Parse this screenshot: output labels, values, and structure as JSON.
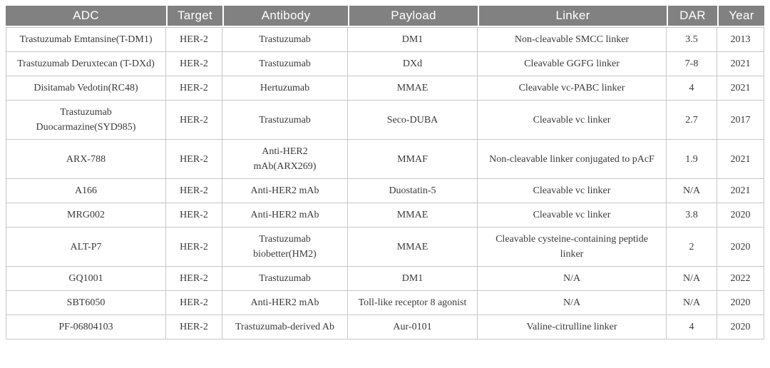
{
  "table": {
    "columns": [
      "ADC",
      "Target",
      "Antibody",
      "Payload",
      "Linker",
      "DAR",
      "Year"
    ],
    "rows": [
      [
        "Trastuzumab Emtansine(T-DM1)",
        "HER-2",
        "Trastuzumab",
        "DM1",
        "Non-cleavable SMCC linker",
        "3.5",
        "2013"
      ],
      [
        "Trastuzumab Deruxtecan (T-DXd)",
        "HER-2",
        "Trastuzumab",
        "DXd",
        "Cleavable GGFG linker",
        "7-8",
        "2021"
      ],
      [
        "Disitamab Vedotin(RC48)",
        "HER-2",
        "Hertuzumab",
        "MMAE",
        "Cleavable vc-PABC linker",
        "4",
        "2021"
      ],
      [
        "Trastuzumab Duocarmazine(SYD985)",
        "HER-2",
        "Trastuzumab",
        "Seco-DUBA",
        "Cleavable vc linker",
        "2.7",
        "2017"
      ],
      [
        "ARX-788",
        "HER-2",
        "Anti-HER2 mAb(ARX269)",
        "MMAF",
        "Non-cleavable linker conjugated to pAcF",
        "1.9",
        "2021"
      ],
      [
        "A166",
        "HER-2",
        "Anti-HER2 mAb",
        "Duostatin-5",
        "Cleavable vc linker",
        "N/A",
        "2021"
      ],
      [
        "MRG002",
        "HER-2",
        "Anti-HER2 mAb",
        "MMAE",
        "Cleavable vc linker",
        "3.8",
        "2020"
      ],
      [
        "ALT-P7",
        "HER-2",
        "Trastuzumab biobetter(HM2)",
        "MMAE",
        "Cleavable cysteine-containing peptide linker",
        "2",
        "2020"
      ],
      [
        "GQ1001",
        "HER-2",
        "Trastuzumab",
        "DM1",
        "N/A",
        "N/A",
        "2022"
      ],
      [
        "SBT6050",
        "HER-2",
        "Anti-HER2 mAb",
        "Toll-like receptor 8 agonist",
        "N/A",
        "N/A",
        "2020"
      ],
      [
        "PF-06804103",
        "HER-2",
        "Trastuzumab-derived Ab",
        "Aur-0101",
        "Valine-citrulline linker",
        "4",
        "2020"
      ]
    ],
    "colors": {
      "header_bg": "#818181",
      "header_text": "#ffffff",
      "body_text": "#3a3a3a",
      "border": "#c7c7c7"
    }
  }
}
